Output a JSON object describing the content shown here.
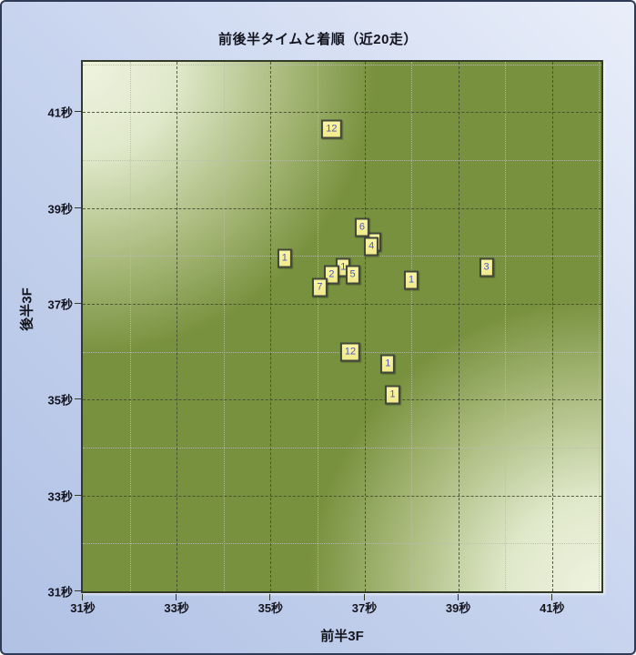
{
  "title": "前後半タイムと着順（近20走）",
  "colors": {
    "frame_border": "#2e3a56",
    "background_top": "#e9eef9",
    "background_bottom": "#b0c1e4",
    "plot_dark_green": "#78913e",
    "plot_light_green": "#eef3df",
    "grid_major": "#454d33",
    "grid_minor": "#b9c0a6",
    "point_fill": "#f9f5a2",
    "point_border": "#41463a",
    "point_text": "#5156c2",
    "text": "#14141e"
  },
  "chart_data": {
    "type": "scatter",
    "title": "前後半タイムと着順（近20走）",
    "xlabel": "前半3F",
    "ylabel": "後半3F",
    "unit": "秒",
    "xlim": [
      31,
      42.05
    ],
    "ylim": [
      31,
      42.05
    ],
    "grid": true,
    "x_ticks": [
      {
        "v": 31,
        "label": "31秒"
      },
      {
        "v": 33,
        "label": "33秒"
      },
      {
        "v": 35,
        "label": "35秒"
      },
      {
        "v": 37,
        "label": "37秒"
      },
      {
        "v": 39,
        "label": "39秒"
      },
      {
        "v": 41,
        "label": "41秒"
      }
    ],
    "y_ticks": [
      {
        "v": 31,
        "label": "31秒"
      },
      {
        "v": 33,
        "label": "33秒"
      },
      {
        "v": 35,
        "label": "35秒"
      },
      {
        "v": 37,
        "label": "37秒"
      },
      {
        "v": 39,
        "label": "39秒"
      },
      {
        "v": 41,
        "label": "41秒"
      }
    ],
    "x_minor_ticks": [
      32,
      34,
      36,
      38,
      40,
      42
    ],
    "y_minor_ticks": [
      32,
      34,
      36,
      38,
      40,
      42
    ],
    "point_label_meaning": "着順",
    "points": [
      {
        "label": "12",
        "x": 36.3,
        "y": 40.65
      },
      {
        "label": "",
        "x": 37.2,
        "y": 38.3,
        "occluded": true
      },
      {
        "label": "6",
        "x": 36.95,
        "y": 38.6
      },
      {
        "label": "4",
        "x": 37.15,
        "y": 38.2
      },
      {
        "label": "1",
        "x": 35.3,
        "y": 37.95
      },
      {
        "label": "1",
        "x": 36.55,
        "y": 37.75
      },
      {
        "label": "2",
        "x": 36.3,
        "y": 37.6
      },
      {
        "label": "5",
        "x": 36.75,
        "y": 37.6
      },
      {
        "label": "7",
        "x": 36.05,
        "y": 37.35
      },
      {
        "label": "1",
        "x": 38.0,
        "y": 37.5
      },
      {
        "label": "3",
        "x": 39.6,
        "y": 37.75
      },
      {
        "label": "12",
        "x": 36.7,
        "y": 36.0
      },
      {
        "label": "1",
        "x": 37.5,
        "y": 35.75
      },
      {
        "label": "1",
        "x": 37.6,
        "y": 35.1
      }
    ]
  }
}
